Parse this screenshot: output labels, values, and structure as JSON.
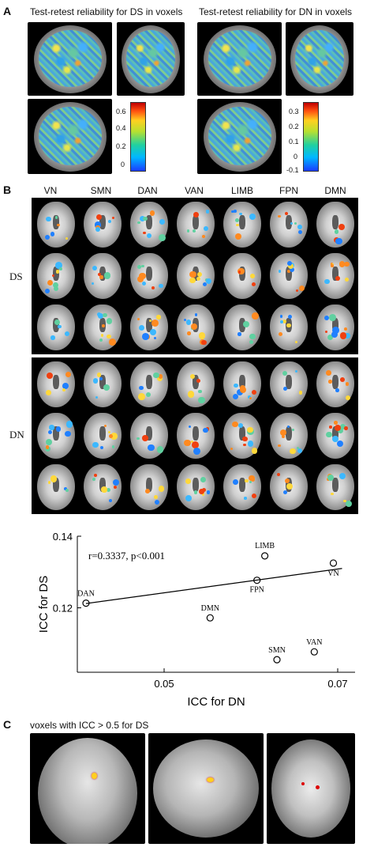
{
  "panel_a": {
    "letter": "A",
    "title_ds": "Test-retest reliability for DS in voxels",
    "title_dn": "Test-retest reliability for DN in voxels",
    "colorbar_ds_ticks": [
      "0.6",
      "0.4",
      "0.2",
      "0"
    ],
    "colorbar_dn_ticks": [
      "0.3",
      "0.2",
      "0.1",
      "0",
      "-0.1"
    ]
  },
  "panel_b": {
    "letter": "B",
    "networks": [
      "VN",
      "SMN",
      "DAN",
      "VAN",
      "LIMB",
      "FPN",
      "DMN"
    ],
    "row_groups": [
      "DS",
      "DN"
    ]
  },
  "chart_data": {
    "type": "scatter",
    "xlabel": "ICC for DN",
    "ylabel": "ICC for DS",
    "xlim": [
      0.04,
      0.072
    ],
    "ylim": [
      0.102,
      0.14
    ],
    "xticks": [
      "0.05",
      "0.07"
    ],
    "yticks": [
      "0.14",
      "0.12"
    ],
    "annotation": "r=0.3337, p<0.001",
    "points": [
      {
        "label": "DAN",
        "x": 0.041,
        "y": 0.1213
      },
      {
        "label": "DMN",
        "x": 0.0553,
        "y": 0.1172
      },
      {
        "label": "FPN",
        "x": 0.0607,
        "y": 0.1277
      },
      {
        "label": "LIMB",
        "x": 0.0616,
        "y": 0.1345
      },
      {
        "label": "SMN",
        "x": 0.063,
        "y": 0.1055
      },
      {
        "label": "VAN",
        "x": 0.0673,
        "y": 0.1077
      },
      {
        "label": "VN",
        "x": 0.0695,
        "y": 0.1325
      }
    ],
    "fit_line": {
      "x": [
        0.041,
        0.0705
      ],
      "y": [
        0.1212,
        0.131
      ]
    }
  },
  "panel_c": {
    "letter": "C",
    "title": "voxels with ICC > 0.5 for DS"
  }
}
